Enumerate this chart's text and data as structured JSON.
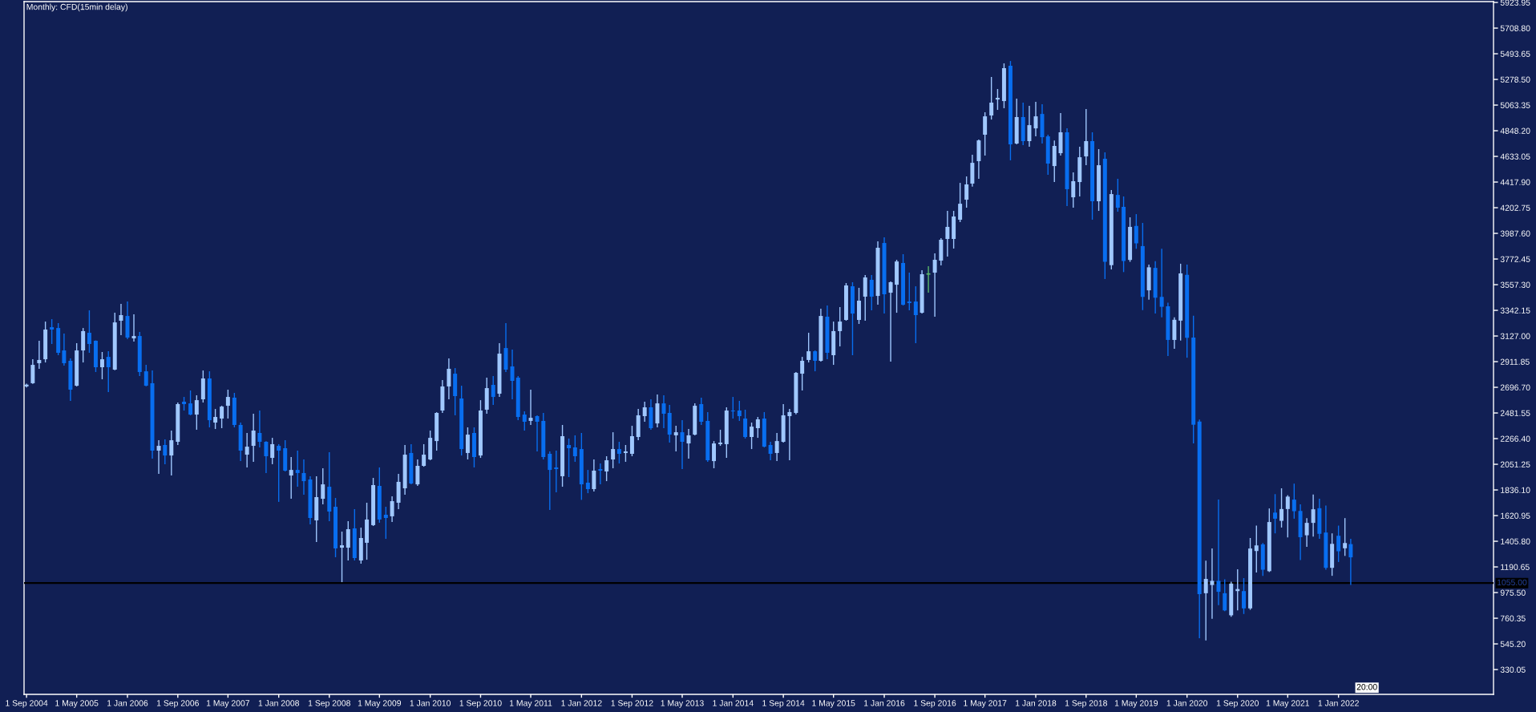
{
  "chart_data": {
    "type": "candlestick",
    "title": "Monthly: CFD(15min delay)",
    "x": [
      "2004-09",
      "2004-10",
      "2004-11",
      "2004-12",
      "2005-01",
      "2005-02",
      "2005-03",
      "2005-04",
      "2005-05",
      "2005-06",
      "2005-07",
      "2005-08",
      "2005-09",
      "2005-10",
      "2005-11",
      "2005-12",
      "2006-01",
      "2006-02",
      "2006-03",
      "2006-04",
      "2006-05",
      "2006-06",
      "2006-07",
      "2006-08",
      "2006-09",
      "2006-10",
      "2006-11",
      "2006-12",
      "2007-01",
      "2007-02",
      "2007-03",
      "2007-04",
      "2007-05",
      "2007-06",
      "2007-07",
      "2007-08",
      "2007-09",
      "2007-10",
      "2007-11",
      "2007-12",
      "2008-01",
      "2008-02",
      "2008-03",
      "2008-04",
      "2008-05",
      "2008-06",
      "2008-07",
      "2008-08",
      "2008-09",
      "2008-10",
      "2008-11",
      "2008-12",
      "2009-01",
      "2009-02",
      "2009-03",
      "2009-04",
      "2009-05",
      "2009-06",
      "2009-07",
      "2009-08",
      "2009-09",
      "2009-10",
      "2009-11",
      "2009-12",
      "2010-01",
      "2010-02",
      "2010-03",
      "2010-04",
      "2010-05",
      "2010-06",
      "2010-07",
      "2010-08",
      "2010-09",
      "2010-10",
      "2010-11",
      "2010-12",
      "2011-01",
      "2011-02",
      "2011-03",
      "2011-04",
      "2011-05",
      "2011-06",
      "2011-07",
      "2011-08",
      "2011-09",
      "2011-10",
      "2011-11",
      "2011-12",
      "2012-01",
      "2012-02",
      "2012-03",
      "2012-04",
      "2012-05",
      "2012-06",
      "2012-07",
      "2012-08",
      "2012-09",
      "2012-10",
      "2012-11",
      "2012-12",
      "2013-01",
      "2013-02",
      "2013-03",
      "2013-04",
      "2013-05",
      "2013-06",
      "2013-07",
      "2013-08",
      "2013-09",
      "2013-10",
      "2013-11",
      "2013-12",
      "2014-01",
      "2014-02",
      "2014-03",
      "2014-04",
      "2014-05",
      "2014-06",
      "2014-07",
      "2014-08",
      "2014-09",
      "2014-10",
      "2014-11",
      "2014-12",
      "2015-01",
      "2015-02",
      "2015-03",
      "2015-04",
      "2015-05",
      "2015-06",
      "2015-07",
      "2015-08",
      "2015-09",
      "2015-10",
      "2015-11",
      "2015-12",
      "2016-01",
      "2016-02",
      "2016-03",
      "2016-04",
      "2016-05",
      "2016-06",
      "2016-07",
      "2016-08",
      "2016-09",
      "2016-10",
      "2016-11",
      "2016-12",
      "2017-01",
      "2017-02",
      "2017-03",
      "2017-04",
      "2017-05",
      "2017-06",
      "2017-07",
      "2017-08",
      "2017-09",
      "2017-10",
      "2017-11",
      "2017-12",
      "2018-01",
      "2018-02",
      "2018-03",
      "2018-04",
      "2018-05",
      "2018-06",
      "2018-07",
      "2018-08",
      "2018-09",
      "2018-10",
      "2018-11",
      "2018-12",
      "2019-01",
      "2019-02",
      "2019-03",
      "2019-04",
      "2019-05",
      "2019-06",
      "2019-07",
      "2019-08",
      "2019-09",
      "2019-10",
      "2019-11",
      "2019-12",
      "2020-01",
      "2020-02",
      "2020-03",
      "2020-04",
      "2020-05",
      "2020-06",
      "2020-07",
      "2020-08",
      "2020-09",
      "2020-10",
      "2020-11",
      "2020-12",
      "2021-01",
      "2021-02",
      "2021-03",
      "2021-04",
      "2021-05",
      "2021-06",
      "2021-07",
      "2021-08",
      "2021-09",
      "2021-10",
      "2021-11",
      "2021-12",
      "2022-01",
      "2022-02",
      "2022-03"
    ],
    "ohlc": [
      [
        2704,
        2728,
        2695,
        2719
      ],
      [
        2731,
        2932,
        2725,
        2885
      ],
      [
        2899,
        3087,
        2852,
        2926
      ],
      [
        2932,
        3248,
        2905,
        3181
      ],
      [
        3201,
        3268,
        3060,
        3181
      ],
      [
        3194,
        3235,
        2966,
        2986
      ],
      [
        3006,
        3147,
        2878,
        2899
      ],
      [
        2919,
        2939,
        2583,
        2677
      ],
      [
        2710,
        3067,
        2704,
        3006
      ],
      [
        3006,
        3194,
        2905,
        3168
      ],
      [
        3154,
        3342,
        2986,
        3060
      ],
      [
        3087,
        3090,
        2825,
        2865
      ],
      [
        2865,
        2993,
        2764,
        2932
      ],
      [
        2952,
        2999,
        2657,
        2865
      ],
      [
        2845,
        3322,
        2840,
        3241
      ],
      [
        3255,
        3396,
        3134,
        3302
      ],
      [
        3295,
        3416,
        3100,
        3114
      ],
      [
        3107,
        3309,
        3080,
        3127
      ],
      [
        3127,
        3161,
        2791,
        2825
      ],
      [
        2831,
        2885,
        2705,
        2710
      ],
      [
        2731,
        2838,
        2099,
        2166
      ],
      [
        2166,
        2253,
        1971,
        2206
      ],
      [
        2213,
        2260,
        2052,
        2125
      ],
      [
        2125,
        2334,
        1957,
        2253
      ],
      [
        2240,
        2569,
        2213,
        2556
      ],
      [
        2576,
        2616,
        2502,
        2556
      ],
      [
        2562,
        2670,
        2462,
        2468
      ],
      [
        2468,
        2630,
        2341,
        2589
      ],
      [
        2596,
        2838,
        2569,
        2771
      ],
      [
        2771,
        2831,
        2361,
        2421
      ],
      [
        2401,
        2515,
        2347,
        2448
      ],
      [
        2435,
        2542,
        2354,
        2535
      ],
      [
        2542,
        2677,
        2435,
        2616
      ],
      [
        2610,
        2650,
        2361,
        2381
      ],
      [
        2381,
        2401,
        2078,
        2166
      ],
      [
        2132,
        2314,
        2025,
        2199
      ],
      [
        2206,
        2475,
        2072,
        2334
      ],
      [
        2314,
        2502,
        2193,
        2240
      ],
      [
        2240,
        2245,
        1978,
        2119
      ],
      [
        2105,
        2273,
        2052,
        2220
      ],
      [
        2206,
        2220,
        1736,
        2166
      ],
      [
        2186,
        2253,
        1991,
        1998
      ],
      [
        1957,
        2112,
        1762,
        2004
      ],
      [
        2004,
        2166,
        1863,
        1978
      ],
      [
        1978,
        2092,
        1796,
        1910
      ],
      [
        1924,
        1951,
        1547,
        1601
      ],
      [
        1581,
        1951,
        1399,
        1776
      ],
      [
        1762,
        2018,
        1715,
        1883
      ],
      [
        1863,
        2152,
        1574,
        1655
      ],
      [
        1695,
        1769,
        1272,
        1346
      ],
      [
        1352,
        1487,
        1063,
        1372
      ],
      [
        1352,
        1574,
        1245,
        1507
      ],
      [
        1514,
        1675,
        1245,
        1265
      ],
      [
        1245,
        1520,
        1218,
        1433
      ],
      [
        1393,
        1729,
        1251,
        1588
      ],
      [
        1541,
        1937,
        1534,
        1877
      ],
      [
        1870,
        2025,
        1561,
        1588
      ],
      [
        1628,
        1695,
        1426,
        1601
      ],
      [
        1615,
        1783,
        1567,
        1742
      ],
      [
        1729,
        1971,
        1675,
        1904
      ],
      [
        1850,
        2213,
        1796,
        2132
      ],
      [
        2146,
        2220,
        1883,
        1890
      ],
      [
        1883,
        2092,
        1870,
        2038
      ],
      [
        2038,
        2220,
        2031,
        2132
      ],
      [
        2092,
        2334,
        2085,
        2273
      ],
      [
        2246,
        2488,
        2166,
        2482
      ],
      [
        2502,
        2757,
        2482,
        2704
      ],
      [
        2704,
        2939,
        2596,
        2852
      ],
      [
        2811,
        2858,
        2462,
        2623
      ],
      [
        2603,
        2710,
        2125,
        2179
      ],
      [
        2146,
        2361,
        2092,
        2300
      ],
      [
        2314,
        2361,
        2025,
        2112
      ],
      [
        2125,
        2589,
        2105,
        2502
      ],
      [
        2509,
        2778,
        2475,
        2690
      ],
      [
        2717,
        2791,
        2549,
        2616
      ],
      [
        2643,
        3067,
        2616,
        2979
      ],
      [
        3026,
        3235,
        2825,
        2845
      ],
      [
        2872,
        3013,
        2596,
        2751
      ],
      [
        2778,
        2791,
        2421,
        2448
      ],
      [
        2468,
        2495,
        2334,
        2408
      ],
      [
        2415,
        2677,
        2381,
        2441
      ],
      [
        2455,
        2462,
        2159,
        2408
      ],
      [
        2415,
        2482,
        2092,
        2112
      ],
      [
        2139,
        2159,
        1668,
        2004
      ],
      [
        2025,
        2166,
        1816,
        2011
      ],
      [
        1951,
        2381,
        1863,
        2287
      ],
      [
        2213,
        2267,
        1944,
        2186
      ],
      [
        2193,
        2294,
        2072,
        2119
      ],
      [
        2179,
        2314,
        1753,
        1883
      ],
      [
        1897,
        2004,
        1809,
        1843
      ],
      [
        1843,
        2092,
        1823,
        1998
      ],
      [
        2011,
        2058,
        1883,
        1998
      ],
      [
        1991,
        2119,
        1910,
        2085
      ],
      [
        2092,
        2320,
        2018,
        2179
      ],
      [
        2179,
        2240,
        2058,
        2139
      ],
      [
        2146,
        2213,
        2072,
        2159
      ],
      [
        2139,
        2374,
        2119,
        2287
      ],
      [
        2280,
        2515,
        2253,
        2462
      ],
      [
        2455,
        2576,
        2408,
        2529
      ],
      [
        2529,
        2596,
        2341,
        2354
      ],
      [
        2394,
        2636,
        2361,
        2562
      ],
      [
        2562,
        2630,
        2354,
        2475
      ],
      [
        2482,
        2549,
        2233,
        2300
      ],
      [
        2294,
        2374,
        2159,
        2320
      ],
      [
        2320,
        2421,
        2011,
        2240
      ],
      [
        2226,
        2347,
        2099,
        2294
      ],
      [
        2300,
        2562,
        2294,
        2542
      ],
      [
        2556,
        2610,
        2381,
        2408
      ],
      [
        2415,
        2489,
        2072,
        2085
      ],
      [
        2078,
        2246,
        2018,
        2226
      ],
      [
        2220,
        2341,
        2206,
        2233
      ],
      [
        2220,
        2529,
        2105,
        2502
      ],
      [
        2502,
        2616,
        2435,
        2495
      ],
      [
        2502,
        2583,
        2415,
        2455
      ],
      [
        2435,
        2509,
        2267,
        2280
      ],
      [
        2280,
        2401,
        2179,
        2367
      ],
      [
        2354,
        2448,
        2273,
        2428
      ],
      [
        2435,
        2489,
        2193,
        2199
      ],
      [
        2213,
        2240,
        2085,
        2139
      ],
      [
        2146,
        2314,
        2078,
        2246
      ],
      [
        2240,
        2556,
        2233,
        2462
      ],
      [
        2455,
        2515,
        2085,
        2489
      ],
      [
        2482,
        2825,
        2470,
        2818
      ],
      [
        2811,
        2952,
        2670,
        2919
      ],
      [
        2926,
        3154,
        2905,
        2999
      ],
      [
        2999,
        3006,
        2831,
        2919
      ],
      [
        2919,
        3356,
        2912,
        3295
      ],
      [
        3289,
        3383,
        2932,
        2986
      ],
      [
        2966,
        3248,
        2885,
        3168
      ],
      [
        3168,
        3369,
        3040,
        3248
      ],
      [
        3262,
        3571,
        3255,
        3551
      ],
      [
        3544,
        3578,
        2966,
        3315
      ],
      [
        3262,
        3531,
        3228,
        3423
      ],
      [
        3457,
        3638,
        3255,
        3618
      ],
      [
        3598,
        3638,
        3342,
        3457
      ],
      [
        3463,
        3921,
        3389,
        3867
      ],
      [
        3907,
        3954,
        3315,
        3477
      ],
      [
        3490,
        3584,
        2912,
        3578
      ],
      [
        3557,
        3766,
        3322,
        3752
      ],
      [
        3739,
        3813,
        3383,
        3389
      ],
      [
        3416,
        3658,
        3342,
        3403
      ],
      [
        3416,
        3544,
        3067,
        3302
      ],
      [
        3322,
        3678,
        3315,
        3645
      ],
      [
        3647,
        3712,
        3490,
        3647
      ],
      [
        3658,
        3820,
        3289,
        3766
      ],
      [
        3759,
        3947,
        3719,
        3934
      ],
      [
        3941,
        4176,
        3793,
        4042
      ],
      [
        3941,
        4176,
        3860,
        4129
      ],
      [
        4102,
        4411,
        4082,
        4236
      ],
      [
        4270,
        4465,
        4203,
        4398
      ],
      [
        4405,
        4647,
        4380,
        4579
      ],
      [
        4593,
        4774,
        4445,
        4767
      ],
      [
        4815,
        5003,
        4640,
        4969
      ],
      [
        4976,
        5299,
        4942,
        5084
      ],
      [
        5110,
        5198,
        5023,
        5124
      ],
      [
        5097,
        5413,
        5037,
        5373
      ],
      [
        5393,
        5433,
        4600,
        4734
      ],
      [
        4741,
        5117,
        4734,
        4963
      ],
      [
        4963,
        5084,
        4727,
        4761
      ],
      [
        4761,
        5057,
        4714,
        4895
      ],
      [
        4868,
        5090,
        4801,
        4969
      ],
      [
        4989,
        5070,
        4741,
        4794
      ],
      [
        4801,
        4815,
        4479,
        4573
      ],
      [
        4552,
        4767,
        4418,
        4721
      ],
      [
        4660,
        4996,
        4640,
        4835
      ],
      [
        4835,
        4868,
        4216,
        4358
      ],
      [
        4290,
        4499,
        4203,
        4425
      ],
      [
        4418,
        4714,
        4297,
        4626
      ],
      [
        4633,
        5030,
        4559,
        4761
      ],
      [
        4761,
        4835,
        4102,
        4257
      ],
      [
        4257,
        4694,
        4176,
        4559
      ],
      [
        4613,
        4667,
        3605,
        3749
      ],
      [
        3721,
        4351,
        3685,
        4317
      ],
      [
        4310,
        4445,
        4169,
        4203
      ],
      [
        4210,
        4297,
        3663,
        3756
      ],
      [
        3765,
        4122,
        3749,
        4042
      ],
      [
        4050,
        4149,
        3858,
        3904
      ],
      [
        3881,
        4075,
        3344,
        3455
      ],
      [
        3510,
        3726,
        3432,
        3703
      ],
      [
        3698,
        3754,
        3316,
        3448
      ],
      [
        3455,
        3858,
        3284,
        3372
      ],
      [
        3376,
        3406,
        2959,
        3094
      ],
      [
        3094,
        3284,
        3019,
        3263
      ],
      [
        3256,
        3733,
        3089,
        3652
      ],
      [
        3640,
        3726,
        2945,
        3112
      ],
      [
        3114,
        3297,
        2227,
        2383
      ],
      [
        2410,
        2427,
        592,
        963
      ],
      [
        970,
        1243,
        574,
        1090
      ],
      [
        1039,
        1345,
        755,
        1074
      ],
      [
        1074,
        1755,
        870,
        982
      ],
      [
        970,
        1086,
        819,
        826
      ],
      [
        785,
        1067,
        773,
        1051
      ],
      [
        988,
        1171,
        826,
        1005
      ],
      [
        988,
        1097,
        796,
        843
      ],
      [
        843,
        1433,
        831,
        1345
      ],
      [
        1324,
        1537,
        1144,
        1371
      ],
      [
        1380,
        1391,
        1116,
        1167
      ],
      [
        1155,
        1681,
        1148,
        1567
      ],
      [
        1646,
        1801,
        1472,
        1595
      ],
      [
        1577,
        1850,
        1521,
        1676
      ],
      [
        1676,
        1792,
        1438,
        1780
      ],
      [
        1755,
        1889,
        1595,
        1658
      ],
      [
        1660,
        1716,
        1248,
        1440
      ],
      [
        1456,
        1600,
        1359,
        1560
      ],
      [
        1560,
        1797,
        1445,
        1674
      ],
      [
        1683,
        1762,
        1426,
        1468
      ],
      [
        1479,
        1706,
        1167,
        1183
      ],
      [
        1183,
        1472,
        1116,
        1384
      ],
      [
        1452,
        1537,
        1232,
        1322
      ],
      [
        1347,
        1600,
        1283,
        1391
      ],
      [
        1382,
        1426,
        1039,
        1271
      ]
    ],
    "colors": [
      "#a0c8ff",
      "#a0c8ff",
      "#a0c8ff",
      "#a0c8ff",
      "#086ef0",
      "#086ef0",
      "#086ef0",
      "#086ef0",
      "#a0c8ff",
      "#a0c8ff",
      "#086ef0",
      "#086ef0",
      "#a0c8ff",
      "#086ef0",
      "#a0c8ff",
      "#a0c8ff",
      "#086ef0",
      "#a0c8ff",
      "#086ef0",
      "#086ef0",
      "#086ef0",
      "#a0c8ff",
      "#086ef0",
      "#a0c8ff",
      "#a0c8ff",
      "#086ef0",
      "#086ef0",
      "#a0c8ff",
      "#a0c8ff",
      "#086ef0",
      "#a0c8ff",
      "#a0c8ff",
      "#a0c8ff",
      "#086ef0",
      "#086ef0",
      "#a0c8ff",
      "#a0c8ff",
      "#086ef0",
      "#086ef0",
      "#a0c8ff",
      "#086ef0",
      "#086ef0",
      "#a0c8ff",
      "#086ef0",
      "#086ef0",
      "#086ef0",
      "#a0c8ff",
      "#a0c8ff",
      "#086ef0",
      "#086ef0",
      "#a0c8ff",
      "#a0c8ff",
      "#086ef0",
      "#a0c8ff",
      "#a0c8ff",
      "#a0c8ff",
      "#086ef0",
      "#086ef0",
      "#a0c8ff",
      "#a0c8ff",
      "#a0c8ff",
      "#086ef0",
      "#a0c8ff",
      "#a0c8ff",
      "#a0c8ff",
      "#a0c8ff",
      "#a0c8ff",
      "#a0c8ff",
      "#086ef0",
      "#086ef0",
      "#a0c8ff",
      "#086ef0",
      "#a0c8ff",
      "#a0c8ff",
      "#086ef0",
      "#a0c8ff",
      "#086ef0",
      "#086ef0",
      "#086ef0",
      "#086ef0",
      "#a0c8ff",
      "#086ef0",
      "#086ef0",
      "#086ef0",
      "#086ef0",
      "#a0c8ff",
      "#086ef0",
      "#086ef0",
      "#086ef0",
      "#086ef0",
      "#a0c8ff",
      "#086ef0",
      "#a0c8ff",
      "#a0c8ff",
      "#086ef0",
      "#a0c8ff",
      "#a0c8ff",
      "#a0c8ff",
      "#a0c8ff",
      "#086ef0",
      "#a0c8ff",
      "#086ef0",
      "#086ef0",
      "#a0c8ff",
      "#086ef0",
      "#a0c8ff",
      "#a0c8ff",
      "#086ef0",
      "#086ef0",
      "#a0c8ff",
      "#a0c8ff",
      "#a0c8ff",
      "#086ef0",
      "#086ef0",
      "#086ef0",
      "#a0c8ff",
      "#a0c8ff",
      "#086ef0",
      "#086ef0",
      "#a0c8ff",
      "#a0c8ff",
      "#a0c8ff",
      "#a0c8ff",
      "#a0c8ff",
      "#a0c8ff",
      "#086ef0",
      "#a0c8ff",
      "#086ef0",
      "#a0c8ff",
      "#a0c8ff",
      "#a0c8ff",
      "#086ef0",
      "#a0c8ff",
      "#a0c8ff",
      "#086ef0",
      "#a0c8ff",
      "#086ef0",
      "#a0c8ff",
      "#a0c8ff",
      "#086ef0",
      "#086ef0",
      "#086ef0",
      "#a0c8ff",
      "#5cb86b",
      "#a0c8ff",
      "#a0c8ff",
      "#a0c8ff",
      "#a0c8ff",
      "#a0c8ff",
      "#a0c8ff",
      "#a0c8ff",
      "#a0c8ff",
      "#a0c8ff",
      "#a0c8ff",
      "#a0c8ff",
      "#a0c8ff",
      "#086ef0",
      "#a0c8ff",
      "#086ef0",
      "#a0c8ff",
      "#a0c8ff",
      "#086ef0",
      "#086ef0",
      "#a0c8ff",
      "#a0c8ff",
      "#086ef0",
      "#a0c8ff",
      "#a0c8ff",
      "#a0c8ff",
      "#086ef0",
      "#a0c8ff",
      "#086ef0",
      "#a0c8ff",
      "#086ef0",
      "#086ef0",
      "#a0c8ff",
      "#086ef0",
      "#086ef0",
      "#a0c8ff",
      "#086ef0",
      "#086ef0",
      "#086ef0",
      "#a0c8ff",
      "#a0c8ff",
      "#086ef0",
      "#086ef0",
      "#086ef0",
      "#a0c8ff",
      "#a0c8ff",
      "#086ef0",
      "#086ef0",
      "#a0c8ff",
      "#a0c8ff",
      "#086ef0",
      "#a0c8ff",
      "#a0c8ff",
      "#086ef0",
      "#a0c8ff",
      "#086ef0",
      "#a0c8ff",
      "#a0c8ff",
      "#086ef0",
      "#086ef0",
      "#a0c8ff",
      "#a0c8ff",
      "#086ef0",
      "#086ef0",
      "#a0c8ff",
      "#086ef0",
      "#a0c8ff",
      "#086ef0"
    ],
    "xlim": [
      "2004-08-20",
      "2024-01-19"
    ],
    "xticks": [
      {
        "value": "2004-09-01",
        "label": "1 Sep 2004"
      },
      {
        "value": "2005-05-01",
        "label": "1 May 2005"
      },
      {
        "value": "2006-01-01",
        "label": "1 Jan 2006"
      },
      {
        "value": "2006-09-01",
        "label": "1 Sep 2006"
      },
      {
        "value": "2007-05-01",
        "label": "1 May 2007"
      },
      {
        "value": "2008-01-01",
        "label": "1 Jan 2008"
      },
      {
        "value": "2008-09-01",
        "label": "1 Sep 2008"
      },
      {
        "value": "2009-05-01",
        "label": "1 May 2009"
      },
      {
        "value": "2010-01-01",
        "label": "1 Jan 2010"
      },
      {
        "value": "2010-09-01",
        "label": "1 Sep 2010"
      },
      {
        "value": "2011-05-01",
        "label": "1 May 2011"
      },
      {
        "value": "2012-01-01",
        "label": "1 Jan 2012"
      },
      {
        "value": "2012-09-01",
        "label": "1 Sep 2012"
      },
      {
        "value": "2013-05-01",
        "label": "1 May 2013"
      },
      {
        "value": "2014-01-01",
        "label": "1 Jan 2014"
      },
      {
        "value": "2014-09-01",
        "label": "1 Sep 2014"
      },
      {
        "value": "2015-05-01",
        "label": "1 May 2015"
      },
      {
        "value": "2016-01-01",
        "label": "1 Jan 2016"
      },
      {
        "value": "2016-09-01",
        "label": "1 Sep 2016"
      },
      {
        "value": "2017-05-01",
        "label": "1 May 2017"
      },
      {
        "value": "2018-01-01",
        "label": "1 Jan 2018"
      },
      {
        "value": "2018-09-01",
        "label": "1 Sep 2018"
      },
      {
        "value": "2019-05-01",
        "label": "1 May 2019"
      },
      {
        "value": "2020-01-01",
        "label": "1 Jan 2020"
      },
      {
        "value": "2020-09-01",
        "label": "1 Sep 2020"
      },
      {
        "value": "2021-05-01",
        "label": "1 May 2021"
      },
      {
        "value": "2022-01-01",
        "label": "1 Jan 2022"
      }
    ],
    "ylim": [
      122,
      5931
    ],
    "yticks": [
      {
        "value": 5923.95,
        "label": "5923.95"
      },
      {
        "value": 5708.8,
        "label": "5708.80"
      },
      {
        "value": 5493.65,
        "label": "5493.65"
      },
      {
        "value": 5278.5,
        "label": "5278.50"
      },
      {
        "value": 5063.35,
        "label": "5063.35"
      },
      {
        "value": 4848.2,
        "label": "4848.20"
      },
      {
        "value": 4633.05,
        "label": "4633.05"
      },
      {
        "value": 4417.9,
        "label": "4417.90"
      },
      {
        "value": 4202.75,
        "label": "4202.75"
      },
      {
        "value": 3987.6,
        "label": "3987.60"
      },
      {
        "value": 3772.45,
        "label": "3772.45"
      },
      {
        "value": 3557.3,
        "label": "3557.30"
      },
      {
        "value": 3342.15,
        "label": "3342.15"
      },
      {
        "value": 3127.0,
        "label": "3127.00"
      },
      {
        "value": 2911.85,
        "label": "2911.85"
      },
      {
        "value": 2696.7,
        "label": "2696.70"
      },
      {
        "value": 2481.55,
        "label": "2481.55"
      },
      {
        "value": 2266.4,
        "label": "2266.40"
      },
      {
        "value": 2051.25,
        "label": "2051.25"
      },
      {
        "value": 1836.1,
        "label": "1836.10"
      },
      {
        "value": 1620.95,
        "label": "1620.95"
      },
      {
        "value": 1405.8,
        "label": "1405.80"
      },
      {
        "value": 1190.65,
        "label": "1190.65"
      },
      {
        "value": 975.5,
        "label": "975.50"
      },
      {
        "value": 760.35,
        "label": "760.35"
      },
      {
        "value": 545.2,
        "label": "545.20"
      },
      {
        "value": 330.05,
        "label": "330.05"
      }
    ],
    "ref_lines": [
      {
        "axis": "y",
        "value": 1055,
        "label": "1055.00",
        "color": "#000000",
        "line_style": "solid"
      }
    ],
    "annotations": [
      "20:00"
    ]
  }
}
